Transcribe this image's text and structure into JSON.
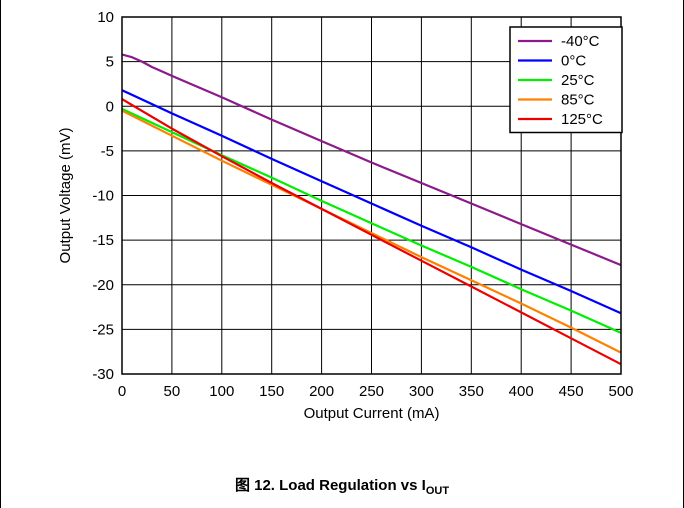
{
  "chart_data": {
    "type": "line",
    "xlabel": "Output Current (mA)",
    "ylabel": "Output Voltage (mV)",
    "xlim": [
      0,
      500
    ],
    "ylim": [
      -30,
      10
    ],
    "xticks": [
      0,
      50,
      100,
      150,
      200,
      250,
      300,
      350,
      400,
      450,
      500
    ],
    "yticks": [
      10,
      5,
      0,
      -5,
      -10,
      -15,
      -20,
      -25,
      -30
    ],
    "grid": true,
    "legend_position": "top-right",
    "series": [
      {
        "name": "-40°C",
        "color": "#8B1A8B",
        "x": [
          0,
          10,
          20,
          30,
          40,
          50,
          100,
          150,
          200,
          250,
          300,
          350,
          400,
          450,
          500
        ],
        "y": [
          5.8,
          5.5,
          5.0,
          4.4,
          3.9,
          3.4,
          1.0,
          -1.5,
          -3.9,
          -6.3,
          -8.6,
          -10.9,
          -13.2,
          -15.5,
          -17.8
        ]
      },
      {
        "name": "0°C",
        "color": "#0000FF",
        "x": [
          0,
          50,
          100,
          150,
          200,
          250,
          300,
          350,
          400,
          450,
          500
        ],
        "y": [
          1.8,
          -0.8,
          -3.3,
          -5.9,
          -8.4,
          -10.9,
          -13.4,
          -15.8,
          -18.3,
          -20.7,
          -23.2
        ]
      },
      {
        "name": "25°C",
        "color": "#00EE00",
        "x": [
          0,
          50,
          100,
          150,
          200,
          250,
          300,
          350,
          400,
          450,
          500
        ],
        "y": [
          -0.3,
          -2.9,
          -5.5,
          -8.0,
          -10.6,
          -13.1,
          -15.6,
          -18.0,
          -20.5,
          -22.9,
          -25.4
        ]
      },
      {
        "name": "85°C",
        "color": "#FF8000",
        "x": [
          0,
          50,
          100,
          150,
          200,
          250,
          300,
          350,
          400,
          450,
          500
        ],
        "y": [
          -0.5,
          -3.3,
          -6.1,
          -8.8,
          -11.5,
          -14.2,
          -16.9,
          -19.5,
          -22.1,
          -24.8,
          -27.6
        ]
      },
      {
        "name": "125°C",
        "color": "#EE0000",
        "x": [
          0,
          50,
          100,
          150,
          200,
          250,
          300,
          350,
          400,
          450,
          500
        ],
        "y": [
          0.8,
          -2.5,
          -5.6,
          -8.6,
          -11.5,
          -14.4,
          -17.3,
          -20.2,
          -23.1,
          -26.0,
          -28.9
        ]
      }
    ]
  },
  "caption": {
    "prefix": "图 12. Load Regulation vs I",
    "subscript": "OUT"
  }
}
